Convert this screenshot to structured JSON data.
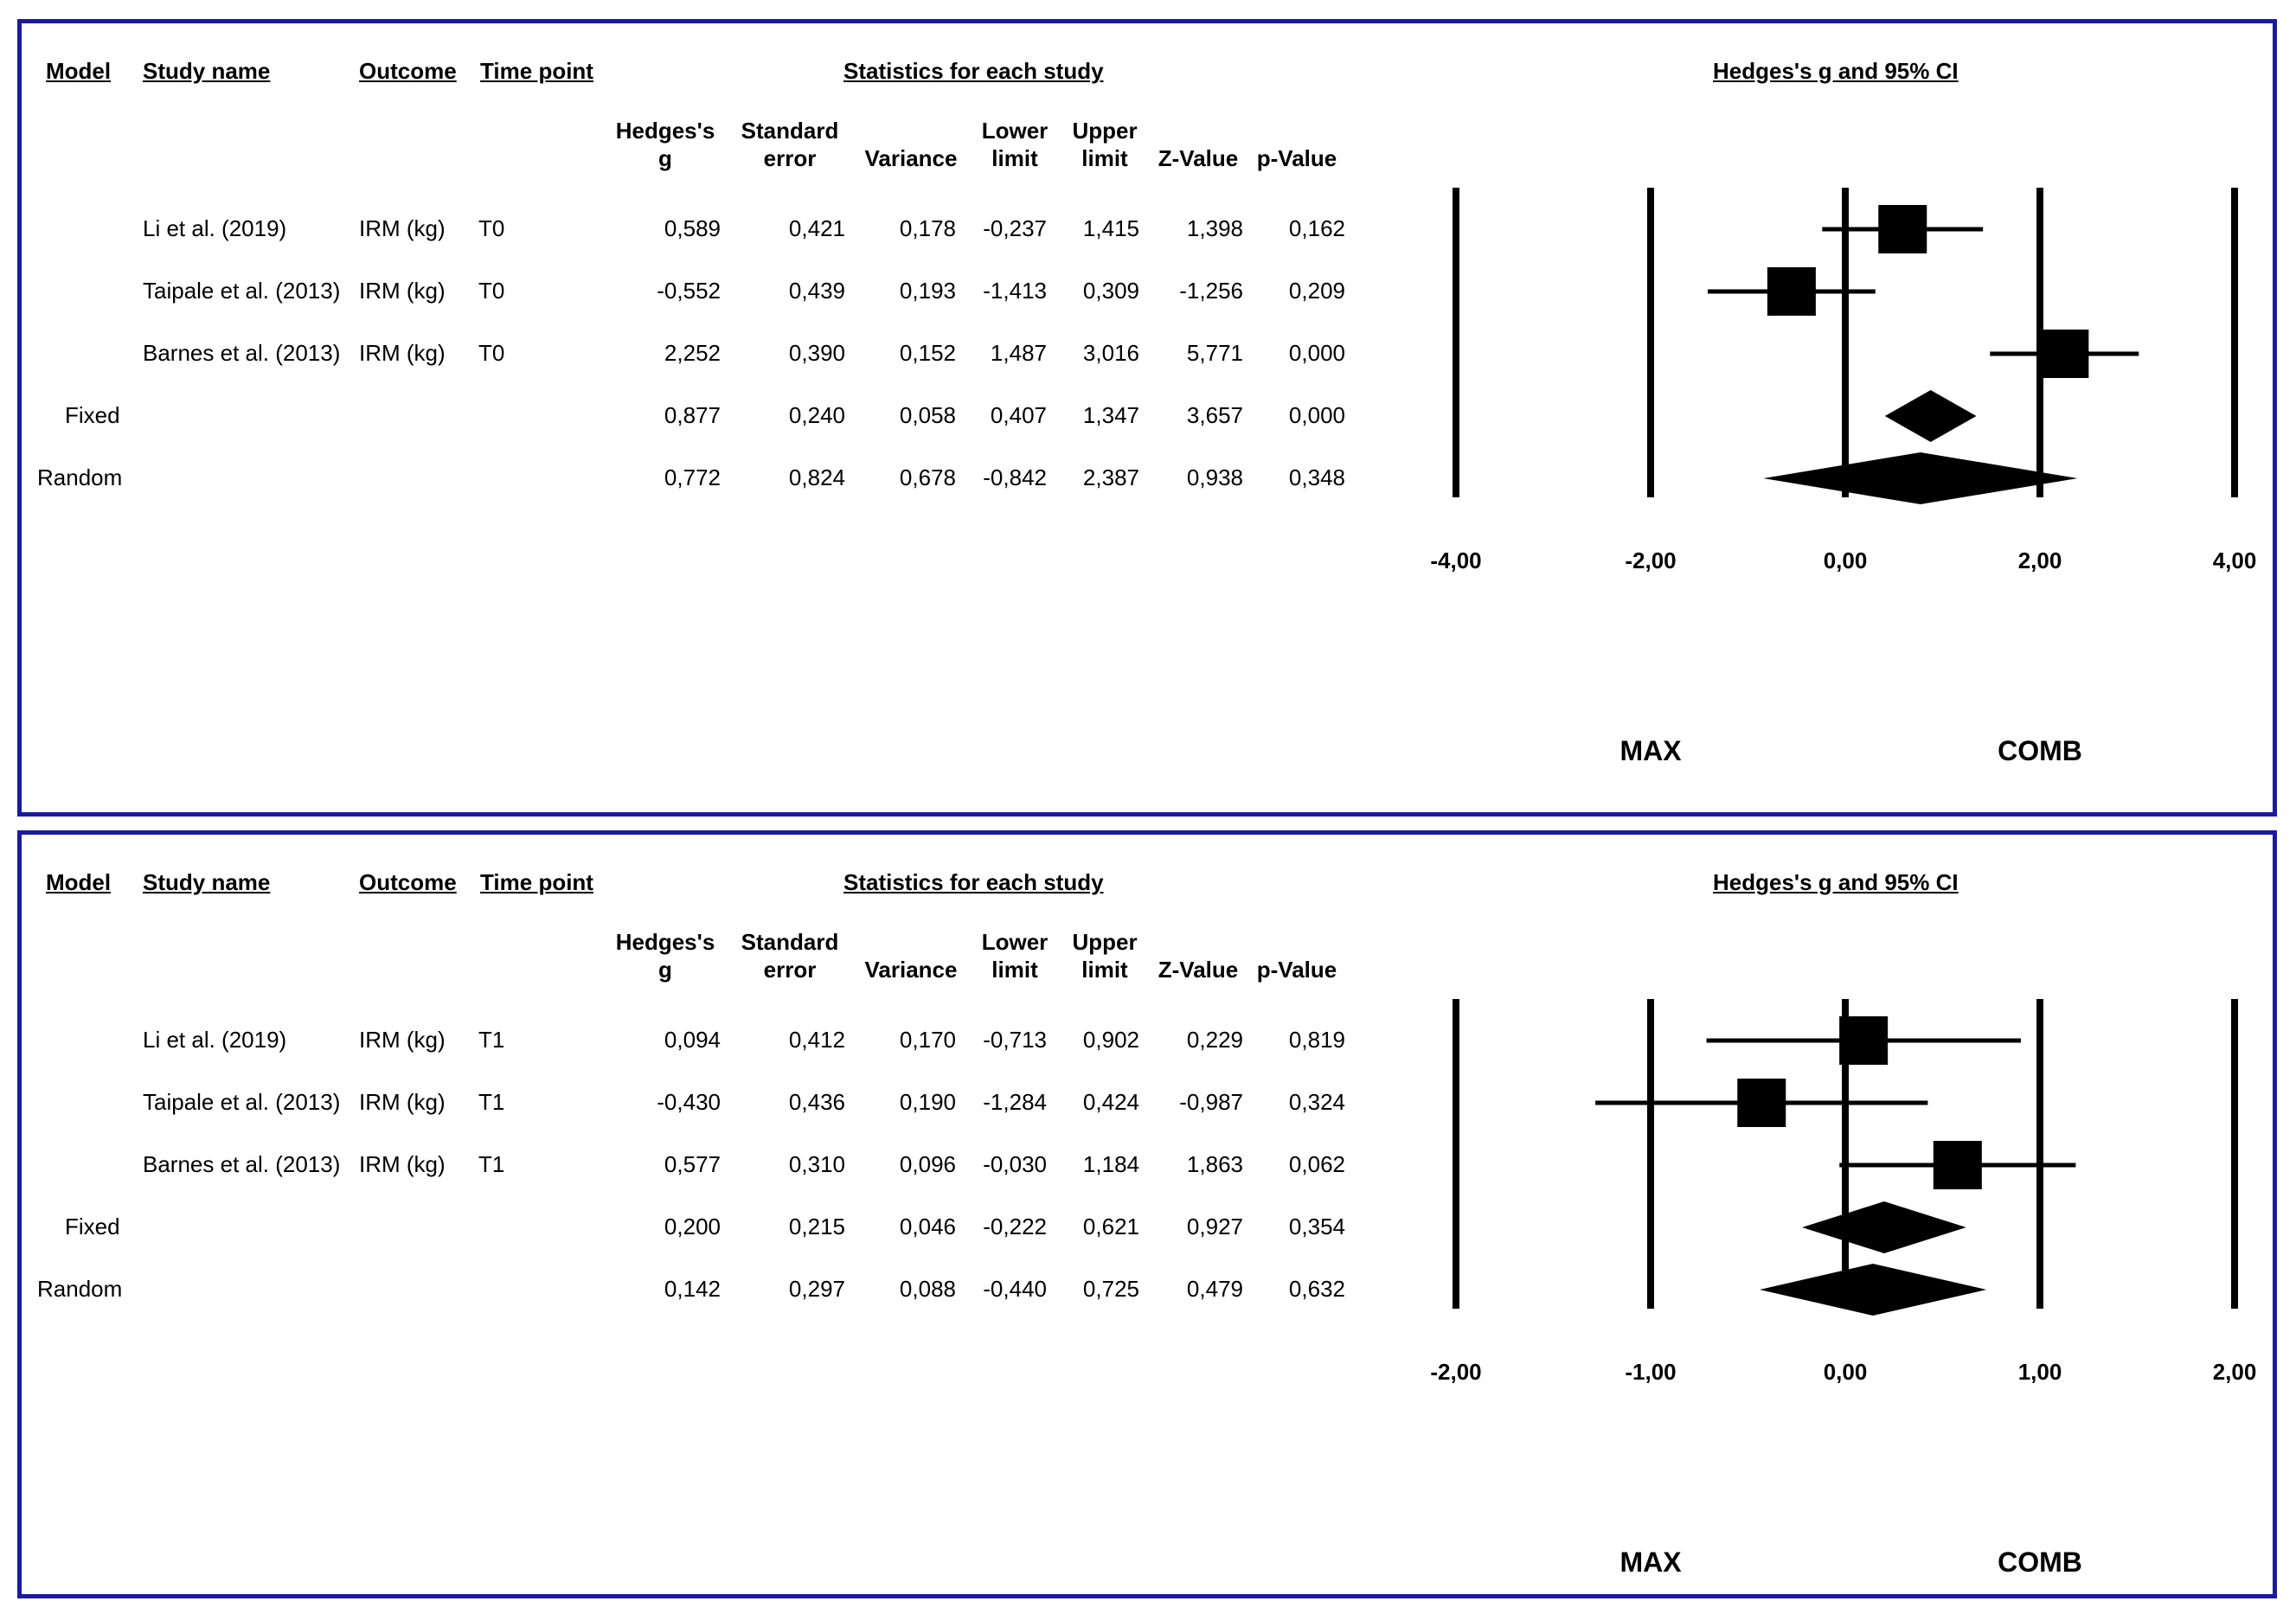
{
  "headers": {
    "model": "Model",
    "study_name": "Study name",
    "outcome": "Outcome",
    "time_point": "Time point",
    "statistics": "Statistics for each study",
    "plot_title": "Hedges's g and 95% CI"
  },
  "columns": {
    "hedges": [
      "Hedges's",
      "g"
    ],
    "se": [
      "Standard",
      "error"
    ],
    "variance": [
      "",
      "Variance"
    ],
    "lower": [
      "Lower",
      "limit"
    ],
    "upper": [
      "Upper",
      "limit"
    ],
    "z": [
      "",
      "Z-Value"
    ],
    "p": [
      "",
      "p-Value"
    ]
  },
  "bottom_labels": {
    "left": "MAX",
    "right": "COMB"
  },
  "panels": [
    {
      "rows": [
        {
          "model": "",
          "study": "Li et al. (2019)",
          "outcome": "IRM (kg)",
          "time": "T0",
          "g": "0,589",
          "se": "0,421",
          "var": "0,178",
          "lower": "-0,237",
          "upper": "1,415",
          "z": "1,398",
          "p": "0,162"
        },
        {
          "model": "",
          "study": "Taipale et al. (2013)",
          "outcome": "IRM (kg)",
          "time": "T0",
          "g": "-0,552",
          "se": "0,439",
          "var": "0,193",
          "lower": "-1,413",
          "upper": "0,309",
          "z": "-1,256",
          "p": "0,209"
        },
        {
          "model": "",
          "study": "Barnes et al. (2013)",
          "outcome": "IRM (kg)",
          "time": "T0",
          "g": "2,252",
          "se": "0,390",
          "var": "0,152",
          "lower": "1,487",
          "upper": "3,016",
          "z": "5,771",
          "p": "0,000"
        },
        {
          "model": "Fixed",
          "study": "",
          "outcome": "",
          "time": "",
          "g": "0,877",
          "se": "0,240",
          "var": "0,058",
          "lower": "0,407",
          "upper": "1,347",
          "z": "3,657",
          "p": "0,000"
        },
        {
          "model": "Random",
          "study": "",
          "outcome": "",
          "time": "",
          "g": "0,772",
          "se": "0,824",
          "var": "0,678",
          "lower": "-0,842",
          "upper": "2,387",
          "z": "0,938",
          "p": "0,348"
        }
      ],
      "ticks": [
        "-4,00",
        "-2,00",
        "0,00",
        "2,00",
        "4,00"
      ]
    },
    {
      "rows": [
        {
          "model": "",
          "study": "Li et al. (2019)",
          "outcome": "IRM (kg)",
          "time": "T1",
          "g": "0,094",
          "se": "0,412",
          "var": "0,170",
          "lower": "-0,713",
          "upper": "0,902",
          "z": "0,229",
          "p": "0,819"
        },
        {
          "model": "",
          "study": "Taipale et al. (2013)",
          "outcome": "IRM (kg)",
          "time": "T1",
          "g": "-0,430",
          "se": "0,436",
          "var": "0,190",
          "lower": "-1,284",
          "upper": "0,424",
          "z": "-0,987",
          "p": "0,324"
        },
        {
          "model": "",
          "study": "Barnes et al. (2013)",
          "outcome": "IRM (kg)",
          "time": "T1",
          "g": "0,577",
          "se": "0,310",
          "var": "0,096",
          "lower": "-0,030",
          "upper": "1,184",
          "z": "1,863",
          "p": "0,062"
        },
        {
          "model": "Fixed",
          "study": "",
          "outcome": "",
          "time": "",
          "g": "0,200",
          "se": "0,215",
          "var": "0,046",
          "lower": "-0,222",
          "upper": "0,621",
          "z": "0,927",
          "p": "0,354"
        },
        {
          "model": "Random",
          "study": "",
          "outcome": "",
          "time": "",
          "g": "0,142",
          "se": "0,297",
          "var": "0,088",
          "lower": "-0,440",
          "upper": "0,725",
          "z": "0,479",
          "p": "0,632"
        }
      ],
      "ticks": [
        "-2,00",
        "-1,00",
        "0,00",
        "1,00",
        "2,00"
      ]
    }
  ],
  "chart_data": [
    {
      "type": "forest",
      "title": "Hedges's g and 95% CI",
      "xlim": [
        -4,
        4
      ],
      "xticks": [
        -4,
        -2,
        0,
        2,
        4
      ],
      "reference_lines": [
        -4,
        -2,
        0,
        2,
        4
      ],
      "studies": [
        {
          "name": "Li et al. (2019)",
          "g": 0.589,
          "lower": -0.237,
          "upper": 1.415,
          "weight_box": "medium"
        },
        {
          "name": "Taipale et al. (2013)",
          "g": -0.552,
          "lower": -1.413,
          "upper": 0.309,
          "weight_box": "medium"
        },
        {
          "name": "Barnes et al. (2013)",
          "g": 2.252,
          "lower": 1.487,
          "upper": 3.016,
          "weight_box": "medium"
        }
      ],
      "summary": [
        {
          "name": "Fixed",
          "g": 0.877,
          "lower": 0.407,
          "upper": 1.347
        },
        {
          "name": "Random",
          "g": 0.772,
          "lower": -0.842,
          "upper": 2.387
        }
      ],
      "xlabel_left": "MAX",
      "xlabel_right": "COMB"
    },
    {
      "type": "forest",
      "title": "Hedges's g and 95% CI",
      "xlim": [
        -2,
        2
      ],
      "xticks": [
        -2,
        -1,
        0,
        1,
        2
      ],
      "reference_lines": [
        -2,
        -1,
        0,
        1,
        2
      ],
      "studies": [
        {
          "name": "Li et al. (2019)",
          "g": 0.094,
          "lower": -0.713,
          "upper": 0.902,
          "weight_box": "medium"
        },
        {
          "name": "Taipale et al. (2013)",
          "g": -0.43,
          "lower": -1.284,
          "upper": 0.424,
          "weight_box": "medium"
        },
        {
          "name": "Barnes et al. (2013)",
          "g": 0.577,
          "lower": -0.03,
          "upper": 1.184,
          "weight_box": "medium"
        }
      ],
      "summary": [
        {
          "name": "Fixed",
          "g": 0.2,
          "lower": -0.222,
          "upper": 0.621
        },
        {
          "name": "Random",
          "g": 0.142,
          "lower": -0.44,
          "upper": 0.725
        }
      ],
      "xlabel_left": "MAX",
      "xlabel_right": "COMB"
    }
  ]
}
